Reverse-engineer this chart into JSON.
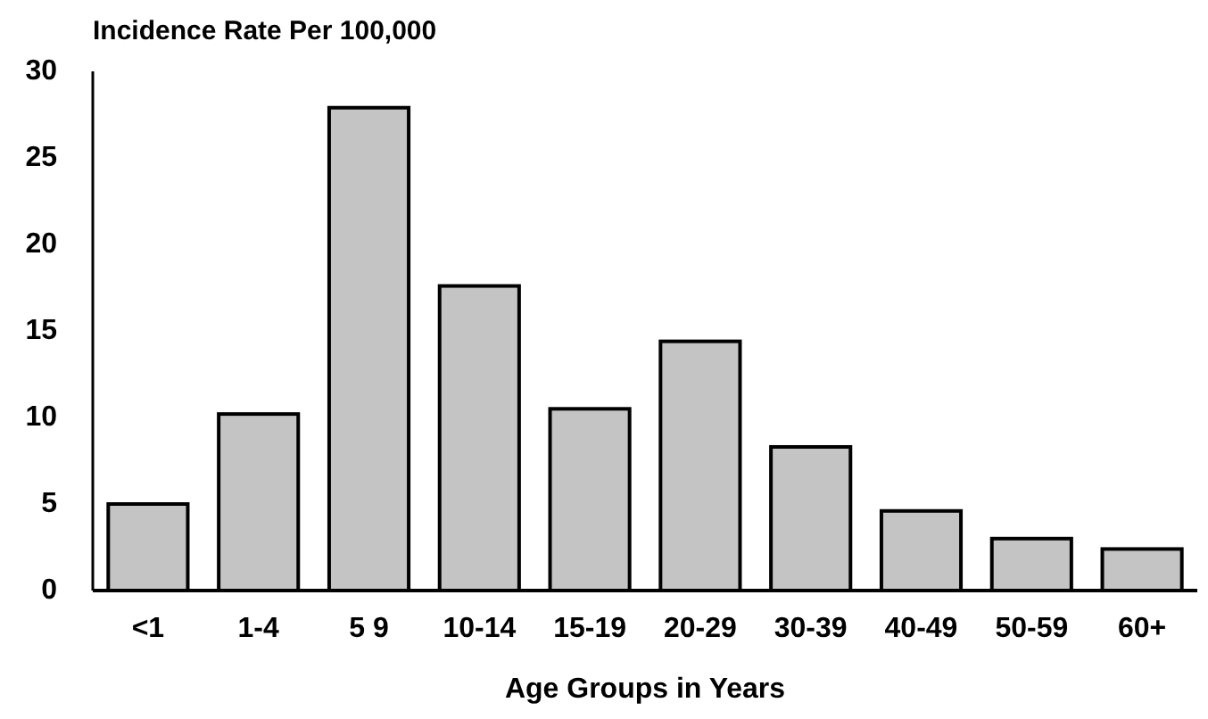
{
  "chart_data": {
    "type": "bar",
    "ylabel": "Incidence Rate Per 100,000",
    "xlabel": "Age Groups in Years",
    "categories": [
      "<1",
      "1-4",
      "5 9",
      "10-14",
      "15-19",
      "20-29",
      "30-39",
      "40-49",
      "50-59",
      "60+"
    ],
    "values": [
      5,
      10.2,
      27.9,
      17.6,
      10.5,
      14.4,
      8.3,
      4.6,
      3.0,
      2.4
    ],
    "color": "#c4c4c4",
    "ylim": [
      0,
      30
    ],
    "yticks": [
      0,
      5,
      10,
      15,
      20,
      25,
      30
    ],
    "grid": false
  }
}
